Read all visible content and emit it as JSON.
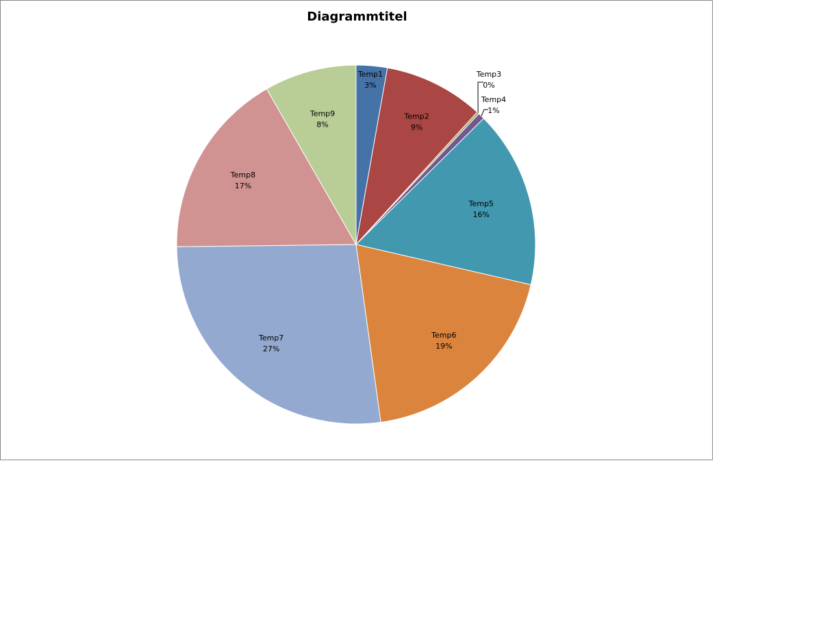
{
  "chart_data": {
    "type": "pie",
    "title": "Diagrammtitel",
    "categories": [
      "Temp1",
      "Temp2",
      "Temp3",
      "Temp4",
      "Temp5",
      "Temp6",
      "Temp7",
      "Temp8",
      "Temp9"
    ],
    "values": [
      2.8,
      9.0,
      0.2,
      0.6,
      16.0,
      19.2,
      27.0,
      16.9,
      8.3
    ],
    "labels": [
      "3%",
      "9%",
      "0%",
      "1%",
      "16%",
      "19%",
      "27%",
      "17%",
      "8%"
    ],
    "colors": [
      "#4572A7",
      "#AA4643",
      "#A6A35E",
      "#71588F",
      "#4198AF",
      "#DB843D",
      "#93A9CF",
      "#D19392",
      "#B9CD96"
    ],
    "legend": "none"
  }
}
